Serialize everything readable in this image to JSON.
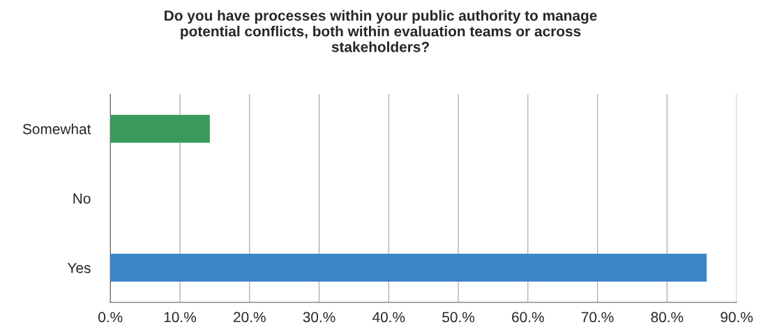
{
  "chart_data": {
    "type": "bar",
    "orientation": "horizontal",
    "title": "Do you have processes within your public authority to manage\npotential conflicts, both within evaluation teams or across\nstakeholders?",
    "categories": [
      "Somewhat",
      "No",
      "Yes"
    ],
    "values": [
      14.3,
      0,
      85.7
    ],
    "colors": [
      "#3a9a5c",
      "#ffffff",
      "#3d86c6"
    ],
    "xlim": [
      0,
      90
    ],
    "xticks": [
      {
        "value": 0,
        "label": "0.%"
      },
      {
        "value": 10,
        "label": "10.%"
      },
      {
        "value": 20,
        "label": "20.%"
      },
      {
        "value": 30,
        "label": "30.%"
      },
      {
        "value": 40,
        "label": "40.%"
      },
      {
        "value": 50,
        "label": "50.%"
      },
      {
        "value": 60,
        "label": "60.%"
      },
      {
        "value": 70,
        "label": "70.%"
      },
      {
        "value": 80,
        "label": "80.%"
      },
      {
        "value": 90,
        "label": "90.%"
      }
    ],
    "grid": "x",
    "legend": false
  }
}
